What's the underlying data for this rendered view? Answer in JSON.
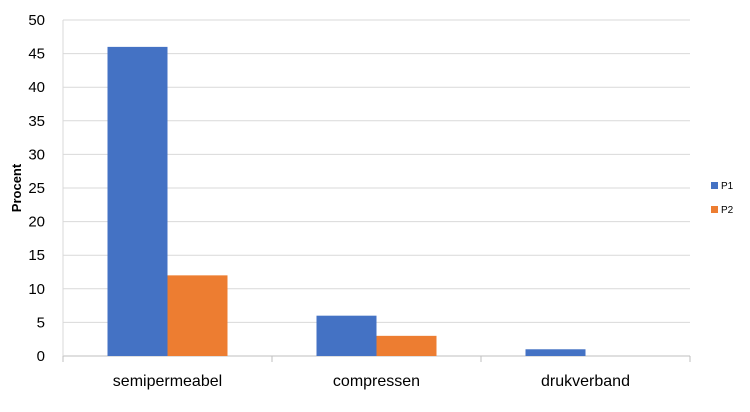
{
  "chart_data": {
    "type": "bar",
    "title": "",
    "xlabel": "",
    "ylabel": "Procent",
    "categories": [
      "semipermeabel",
      "compressen",
      "drukverband"
    ],
    "series": [
      {
        "name": "P1",
        "values": [
          46,
          6,
          1
        ],
        "color": "#4472C4"
      },
      {
        "name": "P2",
        "values": [
          12,
          3,
          0
        ],
        "color": "#ED7D31"
      }
    ],
    "ylim": [
      0,
      50
    ],
    "yticks": [
      0,
      5,
      10,
      15,
      20,
      25,
      30,
      35,
      40,
      45,
      50
    ],
    "grid": true,
    "legend_position": "right"
  }
}
